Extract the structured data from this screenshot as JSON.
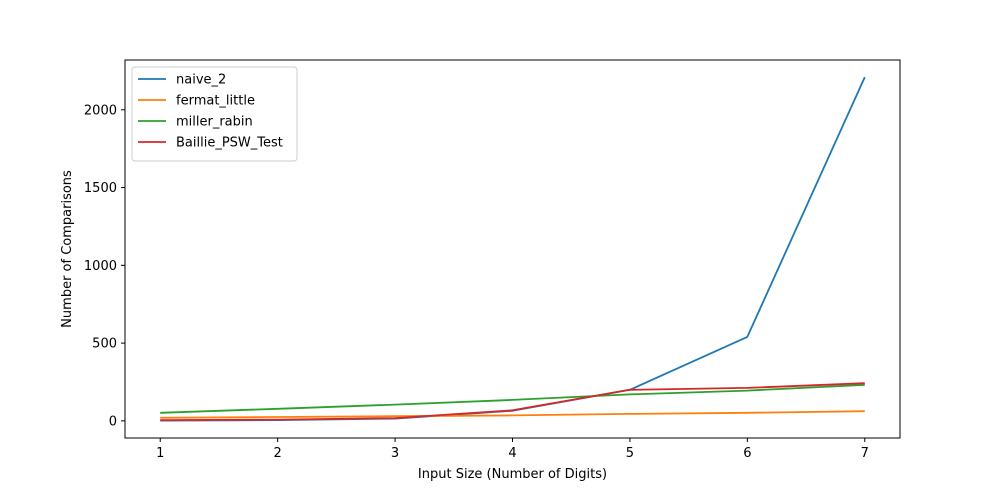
{
  "chart_data": {
    "type": "line",
    "title": "",
    "xlabel": "Input Size (Number of Digits)",
    "ylabel": "Number of Comparisons",
    "x": [
      1,
      2,
      3,
      4,
      5,
      6,
      7
    ],
    "xticks": [
      1,
      2,
      3,
      4,
      5,
      6,
      7
    ],
    "yticks": [
      0,
      500,
      1000,
      1500,
      2000
    ],
    "xlim": [
      0.7,
      7.3
    ],
    "ylim": [
      -110,
      2320
    ],
    "grid": false,
    "legend_position": "upper-left",
    "series": [
      {
        "name": "naive_2",
        "color": "#1f77b4",
        "values": [
          2,
          5,
          15,
          65,
          200,
          540,
          2210
        ]
      },
      {
        "name": "fermat_little",
        "color": "#ff7f0e",
        "values": [
          20,
          25,
          30,
          35,
          45,
          52,
          62
        ]
      },
      {
        "name": "miller_rabin",
        "color": "#2ca02c",
        "values": [
          52,
          78,
          105,
          135,
          170,
          195,
          232
        ]
      },
      {
        "name": "Baillie_PSW_Test",
        "color": "#d62728",
        "values": [
          5,
          8,
          18,
          68,
          200,
          212,
          242
        ]
      }
    ]
  }
}
